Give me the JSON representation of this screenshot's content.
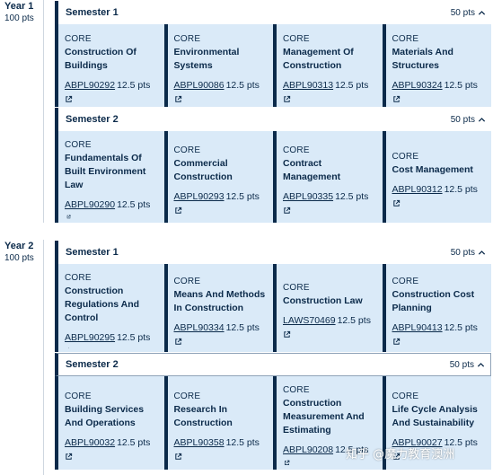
{
  "years": [
    {
      "title": "Year 1",
      "points": "100 pts",
      "semesters": [
        {
          "title": "Semester 1",
          "points": "50 pts",
          "subjects": [
            {
              "type": "CORE",
              "name": "Construction Of Buildings",
              "code": "ABPL90292",
              "credit": "12.5 pts"
            },
            {
              "type": "CORE",
              "name": "Environmental Systems",
              "code": "ABPL90086",
              "credit": "12.5 pts"
            },
            {
              "type": "CORE",
              "name": "Management Of Construction",
              "code": "ABPL90313",
              "credit": "12.5 pts"
            },
            {
              "type": "CORE",
              "name": "Materials And Structures",
              "code": "ABPL90324",
              "credit": "12.5 pts"
            }
          ]
        },
        {
          "title": "Semester 2",
          "points": "50 pts",
          "subjects": [
            {
              "type": "CORE",
              "name": "Fundamentals Of Built Environment Law",
              "code": "ABPL90290",
              "credit": "12.5 pts"
            },
            {
              "type": "CORE",
              "name": "Commercial Construction",
              "code": "ABPL90293",
              "credit": "12.5 pts"
            },
            {
              "type": "CORE",
              "name": "Contract Management",
              "code": "ABPL90335",
              "credit": "12.5 pts"
            },
            {
              "type": "CORE",
              "name": "Cost Management",
              "code": "ABPL90312",
              "credit": "12.5 pts"
            }
          ]
        }
      ]
    },
    {
      "title": "Year 2",
      "points": "100 pts",
      "semesters": [
        {
          "title": "Semester 1",
          "points": "50 pts",
          "subjects": [
            {
              "type": "CORE",
              "name": "Construction Regulations And Control",
              "code": "ABPL90295",
              "credit": "12.5 pts"
            },
            {
              "type": "CORE",
              "name": "Means And Methods In Construction",
              "code": "ABPL90334",
              "credit": "12.5 pts"
            },
            {
              "type": "CORE",
              "name": "Construction Law",
              "code": "LAWS70469",
              "credit": "12.5 pts"
            },
            {
              "type": "CORE",
              "name": "Construction Cost Planning",
              "code": "ABPL90413",
              "credit": "12.5 pts"
            }
          ]
        },
        {
          "title": "Semester 2",
          "points": "50 pts",
          "subjects": [
            {
              "type": "CORE",
              "name": "Building Services And Operations",
              "code": "ABPL90032",
              "credit": "12.5 pts"
            },
            {
              "type": "CORE",
              "name": "Research In Construction",
              "code": "ABPL90358",
              "credit": "12.5 pts"
            },
            {
              "type": "CORE",
              "name": "Construction Measurement And Estimating",
              "code": "ABPL90208",
              "credit": "12.5 pts"
            },
            {
              "type": "CORE",
              "name": "Life Cycle Analysis And Sustainability",
              "code": "ABPL90027",
              "credit": "12.5 pts"
            }
          ]
        }
      ]
    }
  ],
  "watermark": "知乎 @魔力教育澳洲",
  "icons": {
    "external_link": "external-link-icon",
    "collapse": "chevron-up-icon"
  },
  "colors": {
    "navy": "#0b2a4a",
    "card_bg": "#daeaf8"
  }
}
